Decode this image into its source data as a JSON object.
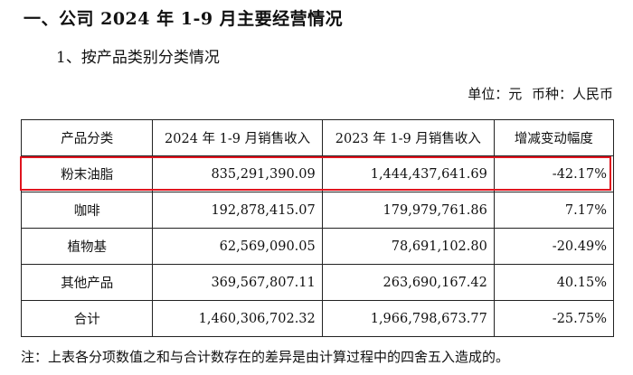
{
  "heading": "一、公司 2024 年 1-9 月主要经营情况",
  "subheading": "1、按产品类别分类情况",
  "unit": {
    "unit_text": "单位：元",
    "currency_text": "币种：人民币"
  },
  "table": {
    "headers": [
      "产品分类",
      "2024 年 1-9 月销售收入",
      "2023 年 1-9 月销售收入",
      "增减变动幅度"
    ],
    "rows": [
      {
        "category": "粉末油脂",
        "y2024": "835,291,390.09",
        "y2023": "1,444,437,641.69",
        "change": "-42.17%"
      },
      {
        "category": "咖啡",
        "y2024": "192,878,415.07",
        "y2023": "179,979,761.86",
        "change": "7.17%"
      },
      {
        "category": "植物基",
        "y2024": "62,569,090.05",
        "y2023": "78,691,102.80",
        "change": "-20.49%"
      },
      {
        "category": "其他产品",
        "y2024": "369,567,807.11",
        "y2023": "263,690,167.42",
        "change": "40.15%"
      },
      {
        "category": "合计",
        "y2024": "1,460,306,702.32",
        "y2023": "1,966,798,673.77",
        "change": "-25.75%"
      }
    ]
  },
  "highlight_color": "#e0141e",
  "note": "注：上表各分项数值之和与合计数存在的差异是由计算过程中的四舍五入造成的。"
}
